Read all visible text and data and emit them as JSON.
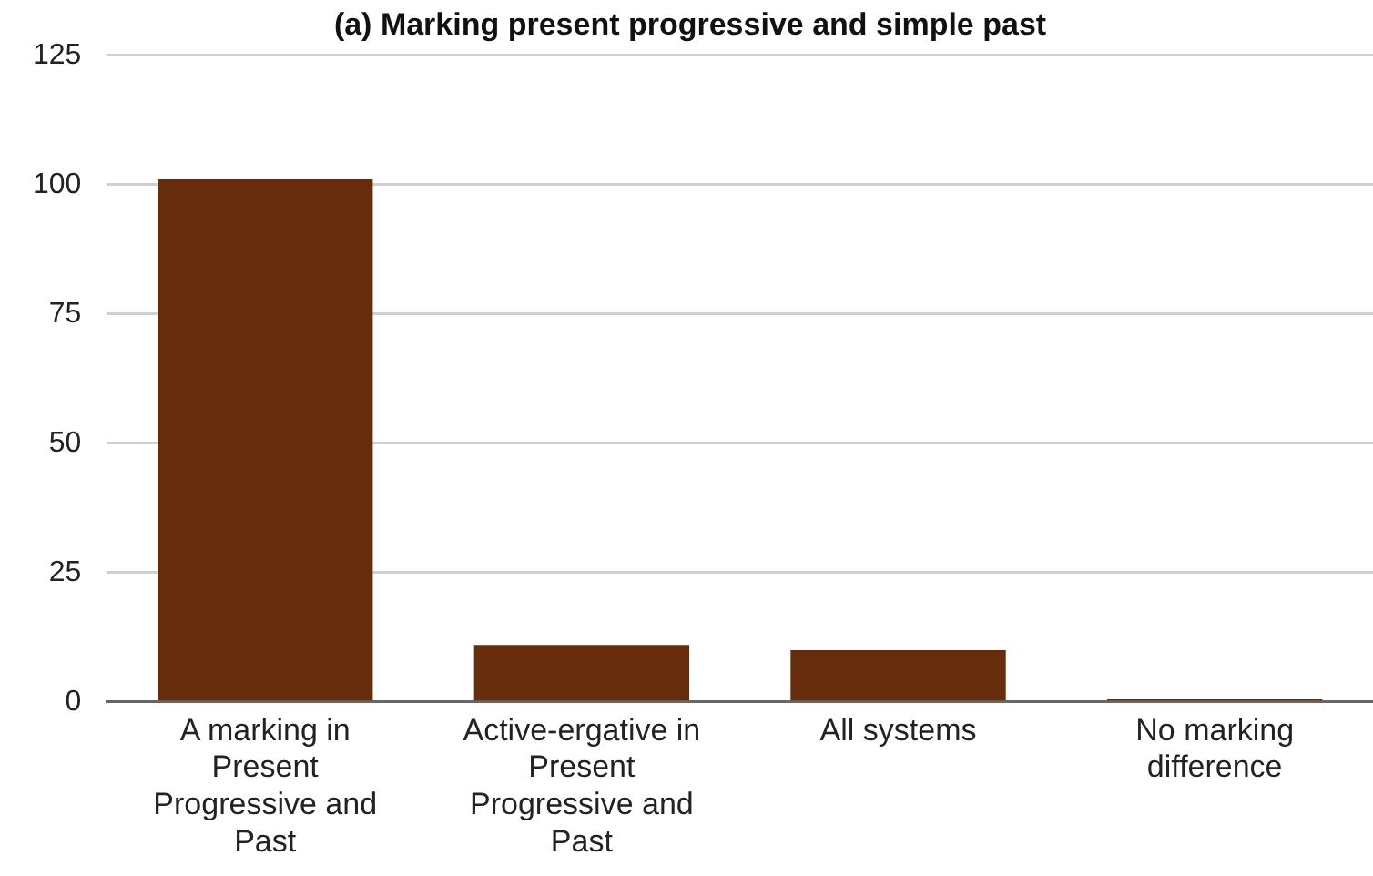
{
  "chart_data": {
    "type": "bar",
    "title": "(a) Marking present progressive and simple past",
    "categories": [
      "A marking in Present Progressive and Past",
      "Active-ergative in Present Progressive and Past",
      "All systems",
      "No marking difference"
    ],
    "values": [
      101,
      11,
      10,
      0.5
    ],
    "color": "#672c0b",
    "ylim": [
      0,
      125
    ],
    "yticks": [
      0,
      25,
      50,
      75,
      100,
      125
    ],
    "grid": "y",
    "legend": false
  }
}
